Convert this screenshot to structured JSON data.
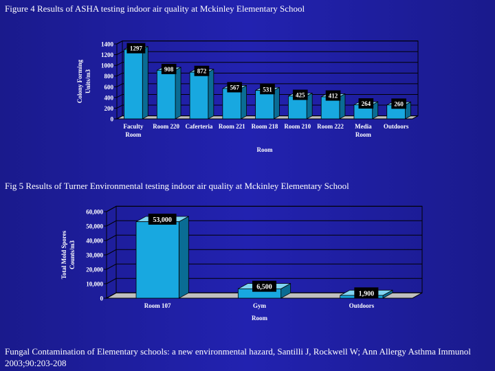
{
  "captions": {
    "fig4": "Figure 4  Results of ASHA testing indoor air quality at Mckinley Elementary School",
    "fig5": "Fig 5 Results of Turner Environmental testing indoor air quality at Mckinley Elementary School"
  },
  "citation": "Fungal Contamination of Elementary schools: a new environmental hazard, Santilli J, Rockwell W; Ann Allergy Asthma Immunol 2003;90:203-208",
  "colors": {
    "background": "#1e1ea0",
    "bar": "#18a8e0",
    "bar_side": "#0a6c94",
    "grid": "#000000"
  },
  "chart_data": [
    {
      "type": "bar",
      "categories": [
        "Faculty Room",
        "Room 220",
        "Caferteria",
        "Room 221",
        "Room 218",
        "Room 210",
        "Room 222",
        "Media Room",
        "Outdoors"
      ],
      "tick_labels": [
        [
          "Faculty",
          "Room"
        ],
        [
          "Room 220"
        ],
        [
          "Caferteria"
        ],
        [
          "Room 221"
        ],
        [
          "Room 218"
        ],
        [
          "Room 210"
        ],
        [
          "Room 222"
        ],
        [
          "Media",
          "Room"
        ],
        [
          "Outdoors"
        ]
      ],
      "values": [
        1297,
        908,
        872,
        567,
        531,
        425,
        412,
        264,
        260
      ],
      "data_labels": [
        "1297",
        "908",
        "872",
        "567",
        "531",
        "425",
        "412",
        "264",
        "260"
      ],
      "ylabel": [
        "Colony Forming",
        "Units/m3"
      ],
      "xlabel": "Room",
      "ylim": [
        0,
        1400
      ],
      "yticks": [
        0,
        200,
        400,
        600,
        800,
        1000,
        1200,
        1400
      ],
      "ytick_labels": [
        "0",
        "200",
        "400",
        "600",
        "800",
        "1000",
        "1200",
        "1400"
      ],
      "grid": true
    },
    {
      "type": "bar",
      "categories": [
        "Room 107",
        "Gym",
        "Outdoors"
      ],
      "tick_labels": [
        [
          "Room 107"
        ],
        [
          "Gym"
        ],
        [
          "Outdoors"
        ]
      ],
      "values": [
        53000,
        6500,
        1900
      ],
      "data_labels": [
        "53,000",
        "6,500",
        "1,900"
      ],
      "ylabel": [
        "Total Mold Spores",
        "Counts/m3"
      ],
      "xlabel": "Room",
      "ylim": [
        0,
        60000
      ],
      "yticks": [
        0,
        10000,
        20000,
        30000,
        40000,
        50000,
        60000
      ],
      "ytick_labels": [
        "0",
        "10,000",
        "20,000",
        "30,000",
        "40,000",
        "50,000",
        "60,000"
      ],
      "grid": true
    }
  ]
}
